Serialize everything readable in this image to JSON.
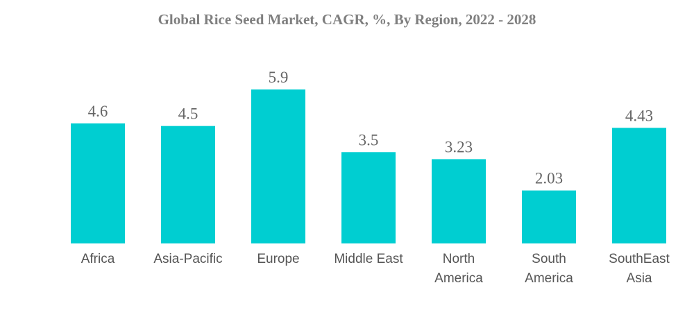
{
  "chart_data": {
    "type": "bar",
    "title": "Global Rice Seed Market, CAGR, %, By Region, 2022 - 2028",
    "categories": [
      "Africa",
      "Asia-Pacific",
      "Europe",
      "Middle East",
      "North America",
      "South America",
      "SouthEast Asia"
    ],
    "category_lines": [
      [
        "Africa"
      ],
      [
        "Asia-Pacific"
      ],
      [
        "Europe"
      ],
      [
        "Middle East"
      ],
      [
        "North",
        "America"
      ],
      [
        "South",
        "America"
      ],
      [
        "SouthEast",
        "Asia"
      ]
    ],
    "values": [
      4.6,
      4.5,
      5.9,
      3.5,
      3.23,
      2.03,
      4.43
    ],
    "value_labels": [
      "4.6",
      "4.5",
      "5.9",
      "3.5",
      "3.23",
      "2.03",
      "4.43"
    ],
    "ylim": [
      0,
      5.9
    ],
    "xlabel": "",
    "ylabel": "",
    "grid": false,
    "bar_color": "#00CED1"
  }
}
